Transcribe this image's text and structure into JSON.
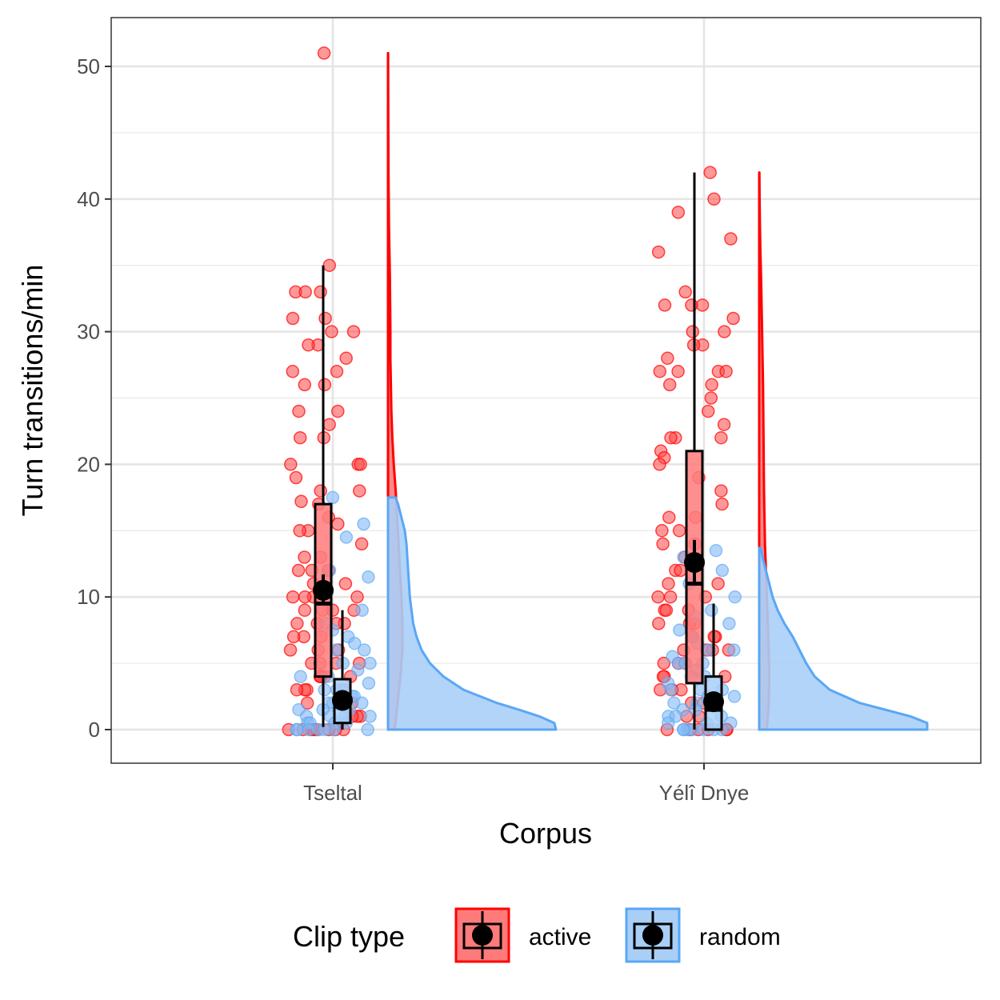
{
  "chart_data": {
    "type": "raincloud",
    "xlabel": "Corpus",
    "ylabel": "Turn transitions/min",
    "ylim": [
      -2.5,
      53.5
    ],
    "yticks": [
      0,
      10,
      20,
      30,
      40,
      50
    ],
    "categories": [
      "Tseltal",
      "Yélî Dnye"
    ],
    "grid": true,
    "legend": {
      "title": "Clip type",
      "position": "bottom",
      "entries": [
        "active",
        "random"
      ]
    },
    "colors": {
      "active_fill": "#ff7b7b",
      "active_line": "#ff0000",
      "random_fill": "#a9cff7",
      "random_line": "#5aa7f5",
      "mean_dot": "#000000"
    },
    "series": [
      {
        "name": "active",
        "summary": [
          {
            "corpus": "Tseltal",
            "q1": 4,
            "median": 9.5,
            "q3": 17,
            "whisker_low": 0.2,
            "whisker_high": 35,
            "mean": 10.5,
            "ci": [
              9.4,
              11.7
            ]
          },
          {
            "corpus": "Yélî Dnye",
            "q1": 3.5,
            "median": 11,
            "q3": 21,
            "whisker_low": 0,
            "whisker_high": 42,
            "mean": 12.6,
            "ci": [
              11,
              14.3
            ]
          }
        ],
        "points": [
          {
            "corpus": "Tseltal",
            "y": [
              51,
              35,
              33,
              33,
              33,
              31,
              31,
              30,
              30,
              29,
              29,
              28,
              27,
              27,
              26,
              26,
              24,
              24,
              23,
              22,
              22,
              20,
              20,
              20,
              19,
              18,
              18,
              17.2,
              17,
              16,
              15.5,
              15,
              15,
              14,
              13,
              13,
              12,
              12,
              12,
              11,
              11,
              10,
              10,
              10,
              10,
              9,
              9,
              9,
              9,
              8,
              8,
              8,
              8,
              7,
              7,
              7,
              6,
              6,
              6,
              5,
              5,
              5,
              5,
              4,
              4,
              4,
              4,
              4,
              3,
              3,
              3,
              3,
              2,
              2,
              2,
              1,
              1,
              1,
              0,
              0,
              0,
              0,
              0,
              0,
              0,
              0
            ]
          },
          {
            "corpus": "Yélî Dnye",
            "y": [
              42,
              40,
              39,
              37,
              36,
              33,
              32,
              32,
              32,
              31,
              30,
              30,
              29,
              29,
              28,
              27,
              27,
              27,
              27,
              26,
              26,
              25,
              24,
              23,
              22,
              22,
              22,
              21,
              20.5,
              20,
              19,
              18,
              17,
              16,
              16,
              15,
              15,
              14,
              14,
              13,
              12,
              12,
              11,
              11,
              10,
              10,
              10,
              9,
              9,
              9,
              8,
              8,
              8,
              7,
              7,
              7,
              6,
              6,
              6,
              6,
              5,
              5,
              5,
              4,
              4,
              4,
              3,
              3,
              3,
              2,
              2,
              1,
              1,
              0,
              0,
              0,
              0,
              0,
              0
            ]
          }
        ],
        "density": [
          {
            "corpus": "Tseltal",
            "y": [
              0,
              2,
              4,
              6,
              8,
              10,
              12,
              14,
              16,
              18,
              20,
              22,
              24,
              26,
              28,
              30,
              32,
              34,
              36,
              38,
              40,
              42,
              44,
              46,
              48,
              50,
              51
            ],
            "width": [
              0.14,
              0.2,
              0.26,
              0.3,
              0.3,
              0.28,
              0.25,
              0.22,
              0.19,
              0.16,
              0.12,
              0.09,
              0.07,
              0.06,
              0.05,
              0.05,
              0.045,
              0.04,
              0.03,
              0.02,
              0.015,
              0.01,
              0.008,
              0.006,
              0.004,
              0.003,
              0.002
            ]
          },
          {
            "corpus": "Yélî Dnye",
            "y": [
              0,
              2,
              4,
              6,
              8,
              10,
              12,
              14,
              16,
              18,
              20,
              22,
              24,
              26,
              28,
              30,
              32,
              34,
              36,
              38,
              40,
              42
            ],
            "width": [
              0.16,
              0.2,
              0.21,
              0.2,
              0.18,
              0.16,
              0.14,
              0.12,
              0.11,
              0.1,
              0.095,
              0.09,
              0.085,
              0.08,
              0.07,
              0.06,
              0.05,
              0.04,
              0.025,
              0.015,
              0.008,
              0.004
            ]
          }
        ]
      },
      {
        "name": "random",
        "summary": [
          {
            "corpus": "Tseltal",
            "q1": 0.5,
            "median": 2,
            "q3": 3.8,
            "whisker_low": 0,
            "whisker_high": 9,
            "mean": 2.2,
            "ci": [
              1.6,
              2.8
            ]
          },
          {
            "corpus": "Yélî Dnye",
            "q1": 0,
            "median": 1.5,
            "q3": 4,
            "whisker_low": 0,
            "whisker_high": 9.5,
            "mean": 2.1,
            "ci": [
              1.6,
              2.7
            ]
          }
        ],
        "points": [
          {
            "corpus": "Tseltal",
            "y": [
              17.5,
              15.5,
              14.5,
              12,
              11.5,
              9,
              8,
              7.5,
              7,
              6.5,
              6,
              6,
              5,
              5,
              4.5,
              4,
              4,
              3.5,
              3,
              3,
              3,
              2.5,
              2.5,
              2,
              2,
              2,
              1.5,
              1.5,
              1.5,
              1,
              1,
              1,
              1,
              0.5,
              0.5,
              0.5,
              0.5,
              0,
              0,
              0,
              0,
              0,
              0,
              0
            ]
          },
          {
            "corpus": "Yélî Dnye",
            "y": [
              13.5,
              13,
              12,
              11,
              10,
              9,
              8.5,
              8,
              7.5,
              7,
              6.5,
              6,
              6,
              5.5,
              5,
              5,
              5,
              4.5,
              4,
              4,
              3.5,
              3,
              3,
              3,
              2.5,
              2.5,
              2,
              2,
              1.5,
              1.5,
              1,
              1,
              1,
              0.5,
              0.5,
              0.5,
              0,
              0,
              0,
              0,
              0,
              0,
              0
            ]
          }
        ],
        "density": [
          {
            "corpus": "Tseltal",
            "y": [
              0,
              0.5,
              1,
              1.5,
              2,
              3,
              4,
              5,
              6,
              7,
              8,
              9,
              10,
              11,
              12,
              13,
              14,
              15,
              16,
              17,
              17.5
            ],
            "width": [
              1.0,
              0.99,
              0.9,
              0.78,
              0.65,
              0.45,
              0.33,
              0.25,
              0.2,
              0.17,
              0.15,
              0.14,
              0.13,
              0.125,
              0.12,
              0.115,
              0.11,
              0.1,
              0.08,
              0.06,
              0.045
            ]
          },
          {
            "corpus": "Yélî Dnye",
            "y": [
              0,
              0.5,
              1,
              1.5,
              2,
              3,
              4,
              5,
              6,
              7,
              8,
              9,
              10,
              11,
              12,
              13,
              13.7
            ],
            "width": [
              1.0,
              1.0,
              0.9,
              0.75,
              0.6,
              0.42,
              0.33,
              0.28,
              0.24,
              0.2,
              0.15,
              0.11,
              0.08,
              0.06,
              0.04,
              0.02,
              0.01
            ]
          }
        ]
      }
    ]
  }
}
